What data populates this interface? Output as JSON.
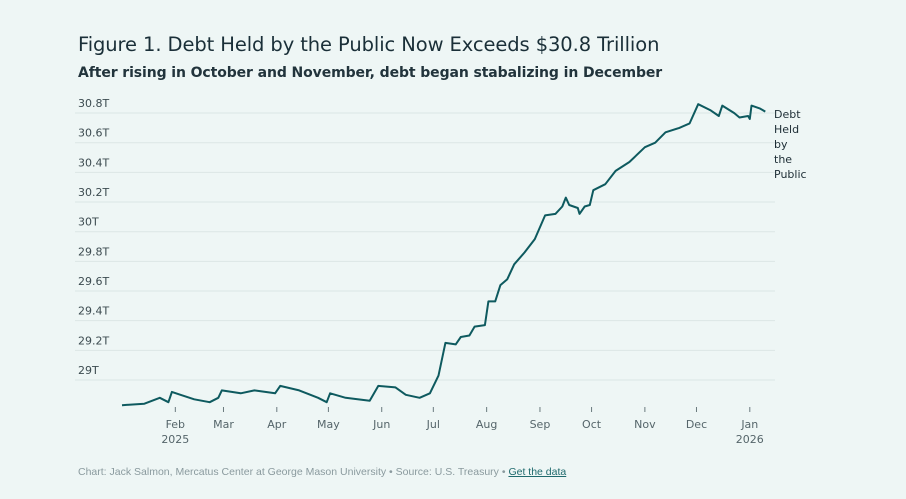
{
  "chart_data": {
    "type": "line",
    "title": "Figure 1. Debt Held by the Public Now Exceeds $30.8 Trillion",
    "subtitle": "After rising in October and November, debt began stabalizing in December",
    "xlabel": "",
    "ylabel": "",
    "x_unit": "days since 2025-01-01",
    "xlim": [
      0,
      374
    ],
    "ylim": [
      28.8,
      30.9
    ],
    "grid": true,
    "y_ticks": [
      {
        "value": 30.8,
        "label": "30.8T"
      },
      {
        "value": 30.6,
        "label": "30.6T"
      },
      {
        "value": 30.4,
        "label": "30.4T"
      },
      {
        "value": 30.2,
        "label": "30.2T"
      },
      {
        "value": 30.0,
        "label": "30T"
      },
      {
        "value": 29.8,
        "label": "29.8T"
      },
      {
        "value": 29.6,
        "label": "29.6T"
      },
      {
        "value": 29.4,
        "label": "29.4T"
      },
      {
        "value": 29.2,
        "label": "29.2T"
      },
      {
        "value": 29.0,
        "label": "29T"
      }
    ],
    "x_ticks": [
      {
        "day": 31,
        "label": "Feb",
        "sub": "2025"
      },
      {
        "day": 59,
        "label": "Mar"
      },
      {
        "day": 90,
        "label": "Apr"
      },
      {
        "day": 120,
        "label": "May"
      },
      {
        "day": 151,
        "label": "Jun"
      },
      {
        "day": 181,
        "label": "Jul"
      },
      {
        "day": 212,
        "label": "Aug"
      },
      {
        "day": 243,
        "label": "Sep"
      },
      {
        "day": 273,
        "label": "Oct"
      },
      {
        "day": 304,
        "label": "Nov"
      },
      {
        "day": 334,
        "label": "Dec"
      },
      {
        "day": 365,
        "label": "Jan",
        "sub": "2026"
      }
    ],
    "series": [
      {
        "name": "Debt Held by the Public",
        "label_lines": [
          "Debt",
          "Held",
          "by",
          "the",
          "Public"
        ],
        "color": "#0e5a5f",
        "points": [
          [
            0,
            28.83
          ],
          [
            13,
            28.84
          ],
          [
            22,
            28.88
          ],
          [
            27,
            28.85
          ],
          [
            29,
            28.92
          ],
          [
            34,
            28.9
          ],
          [
            42,
            28.87
          ],
          [
            51,
            28.85
          ],
          [
            56,
            28.88
          ],
          [
            58,
            28.93
          ],
          [
            69,
            28.91
          ],
          [
            77,
            28.93
          ],
          [
            89,
            28.91
          ],
          [
            92,
            28.96
          ],
          [
            103,
            28.93
          ],
          [
            114,
            28.88
          ],
          [
            119,
            28.85
          ],
          [
            121,
            28.91
          ],
          [
            130,
            28.88
          ],
          [
            144,
            28.86
          ],
          [
            149,
            28.96
          ],
          [
            159,
            28.95
          ],
          [
            165,
            28.9
          ],
          [
            173,
            28.88
          ],
          [
            179,
            28.91
          ],
          [
            184,
            29.03
          ],
          [
            188,
            29.25
          ],
          [
            194,
            29.24
          ],
          [
            197,
            29.29
          ],
          [
            202,
            29.3
          ],
          [
            205,
            29.36
          ],
          [
            211,
            29.37
          ],
          [
            213,
            29.53
          ],
          [
            217,
            29.53
          ],
          [
            220,
            29.64
          ],
          [
            224,
            29.68
          ],
          [
            228,
            29.78
          ],
          [
            234,
            29.86
          ],
          [
            240,
            29.95
          ],
          [
            246,
            30.11
          ],
          [
            252,
            30.12
          ],
          [
            256,
            30.17
          ],
          [
            258,
            30.23
          ],
          [
            260,
            30.18
          ],
          [
            265,
            30.16
          ],
          [
            266,
            30.12
          ],
          [
            269,
            30.17
          ],
          [
            272,
            30.18
          ],
          [
            274,
            30.28
          ],
          [
            281,
            30.32
          ],
          [
            287,
            30.41
          ],
          [
            295,
            30.47
          ],
          [
            304,
            30.57
          ],
          [
            310,
            30.6
          ],
          [
            316,
            30.67
          ],
          [
            324,
            30.7
          ],
          [
            330,
            30.73
          ],
          [
            335,
            30.86
          ],
          [
            342,
            30.82
          ],
          [
            347,
            30.78
          ],
          [
            349,
            30.85
          ],
          [
            356,
            30.8
          ],
          [
            359,
            30.77
          ],
          [
            364,
            30.78
          ],
          [
            365,
            30.76
          ],
          [
            366,
            30.85
          ],
          [
            371,
            30.83
          ],
          [
            374,
            30.81
          ]
        ]
      }
    ]
  },
  "footer": {
    "credit": "Chart: Jack Salmon, Mercatus Center at George Mason University • Source: U.S. Treasury • ",
    "link": "Get the data"
  }
}
